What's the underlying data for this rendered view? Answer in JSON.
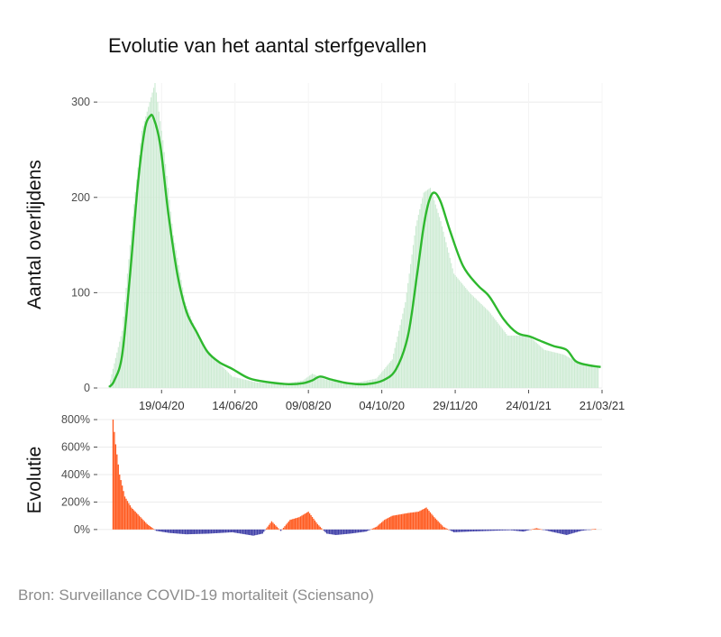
{
  "chart_data": [
    {
      "type": "area",
      "title": "Evolutie van het aantal sterfgevallen",
      "xlabel": "",
      "ylabel": "Aantal overlijdens",
      "ylim": [
        0,
        320
      ],
      "yticks": [
        0,
        100,
        200,
        300
      ],
      "x_tick_labels": [
        "19/04/20",
        "14/06/20",
        "09/08/20",
        "04/10/20",
        "29/11/20",
        "24/01/21",
        "21/03/21"
      ],
      "x_range": [
        "2020-03-01",
        "2021-03-21"
      ],
      "grid": true,
      "series": [
        {
          "type": "bar",
          "color": "#cdebd3",
          "x": [
            "2020-03-10",
            "2020-03-20",
            "2020-03-28",
            "2020-04-04",
            "2020-04-10",
            "2020-04-14",
            "2020-04-20",
            "2020-04-28",
            "2020-05-07",
            "2020-05-18",
            "2020-05-30",
            "2020-06-12",
            "2020-06-30",
            "2020-07-20",
            "2020-08-05",
            "2020-08-12",
            "2020-08-22",
            "2020-09-10",
            "2020-09-30",
            "2020-10-12",
            "2020-10-22",
            "2020-10-30",
            "2020-11-05",
            "2020-11-10",
            "2020-11-18",
            "2020-11-28",
            "2020-12-10",
            "2020-12-25",
            "2021-01-08",
            "2021-01-24",
            "2021-02-05",
            "2021-02-20",
            "2021-03-05",
            "2021-03-18"
          ],
          "values": [
            3,
            60,
            180,
            270,
            300,
            320,
            260,
            160,
            90,
            50,
            30,
            12,
            6,
            4,
            8,
            15,
            9,
            4,
            10,
            30,
            90,
            170,
            205,
            210,
            175,
            120,
            100,
            80,
            55,
            55,
            40,
            35,
            25,
            22
          ]
        },
        {
          "type": "line",
          "color": "#2eb82e",
          "x": [
            "2020-03-10",
            "2020-03-14",
            "2020-03-20",
            "2020-03-26",
            "2020-04-01",
            "2020-04-06",
            "2020-04-10",
            "2020-04-13",
            "2020-04-18",
            "2020-04-24",
            "2020-05-01",
            "2020-05-08",
            "2020-05-16",
            "2020-05-24",
            "2020-06-02",
            "2020-06-12",
            "2020-06-25",
            "2020-07-10",
            "2020-07-25",
            "2020-08-05",
            "2020-08-12",
            "2020-08-18",
            "2020-08-26",
            "2020-09-08",
            "2020-09-22",
            "2020-10-05",
            "2020-10-15",
            "2020-10-24",
            "2020-10-31",
            "2020-11-05",
            "2020-11-09",
            "2020-11-13",
            "2020-11-18",
            "2020-11-25",
            "2020-12-05",
            "2020-12-16",
            "2020-12-25",
            "2021-01-05",
            "2021-01-15",
            "2021-01-25",
            "2021-02-01",
            "2021-02-12",
            "2021-02-22",
            "2021-03-01",
            "2021-03-10",
            "2021-03-20"
          ],
          "values": [
            1,
            8,
            35,
            120,
            215,
            270,
            285,
            283,
            255,
            185,
            120,
            80,
            58,
            38,
            27,
            20,
            10,
            6,
            4,
            5,
            8,
            12,
            9,
            5,
            4,
            8,
            20,
            55,
            120,
            170,
            196,
            205,
            195,
            165,
            128,
            108,
            96,
            72,
            58,
            54,
            50,
            44,
            40,
            28,
            24,
            22
          ]
        }
      ]
    },
    {
      "type": "bar",
      "xlabel": "",
      "ylabel": "Evolutie",
      "ylim": [
        -60,
        820
      ],
      "yticks": [
        0,
        200,
        400,
        600,
        800
      ],
      "ytick_labels": [
        "0%",
        "200%",
        "400%",
        "600%",
        "800%"
      ],
      "x_range": [
        "2020-03-01",
        "2021-03-21"
      ],
      "grid": true,
      "colors": {
        "positive": "#ff5a1f",
        "negative": "#4040a8"
      },
      "x": [
        "2020-03-13",
        "2020-03-15",
        "2020-03-18",
        "2020-03-22",
        "2020-03-27",
        "2020-04-02",
        "2020-04-08",
        "2020-04-15",
        "2020-04-25",
        "2020-05-08",
        "2020-05-25",
        "2020-06-12",
        "2020-06-28",
        "2020-07-05",
        "2020-07-12",
        "2020-07-19",
        "2020-07-26",
        "2020-08-02",
        "2020-08-09",
        "2020-08-16",
        "2020-08-23",
        "2020-08-30",
        "2020-09-10",
        "2020-09-22",
        "2020-09-30",
        "2020-10-06",
        "2020-10-12",
        "2020-10-18",
        "2020-10-24",
        "2020-11-01",
        "2020-11-07",
        "2020-11-13",
        "2020-11-20",
        "2020-11-28",
        "2020-12-10",
        "2020-12-25",
        "2021-01-10",
        "2021-01-20",
        "2021-01-30",
        "2021-02-10",
        "2021-02-22",
        "2021-03-05",
        "2021-03-16"
      ],
      "values": [
        800,
        620,
        400,
        240,
        160,
        100,
        40,
        -10,
        -25,
        -35,
        -30,
        -20,
        -45,
        -30,
        60,
        -10,
        70,
        90,
        130,
        40,
        -30,
        -40,
        -30,
        -15,
        20,
        70,
        100,
        110,
        120,
        130,
        160,
        90,
        20,
        -20,
        -15,
        -10,
        -5,
        -15,
        10,
        -15,
        -40,
        -10,
        5
      ]
    }
  ],
  "source_note": "Bron: Surveillance COVID-19 mortaliteit (Sciensano)"
}
